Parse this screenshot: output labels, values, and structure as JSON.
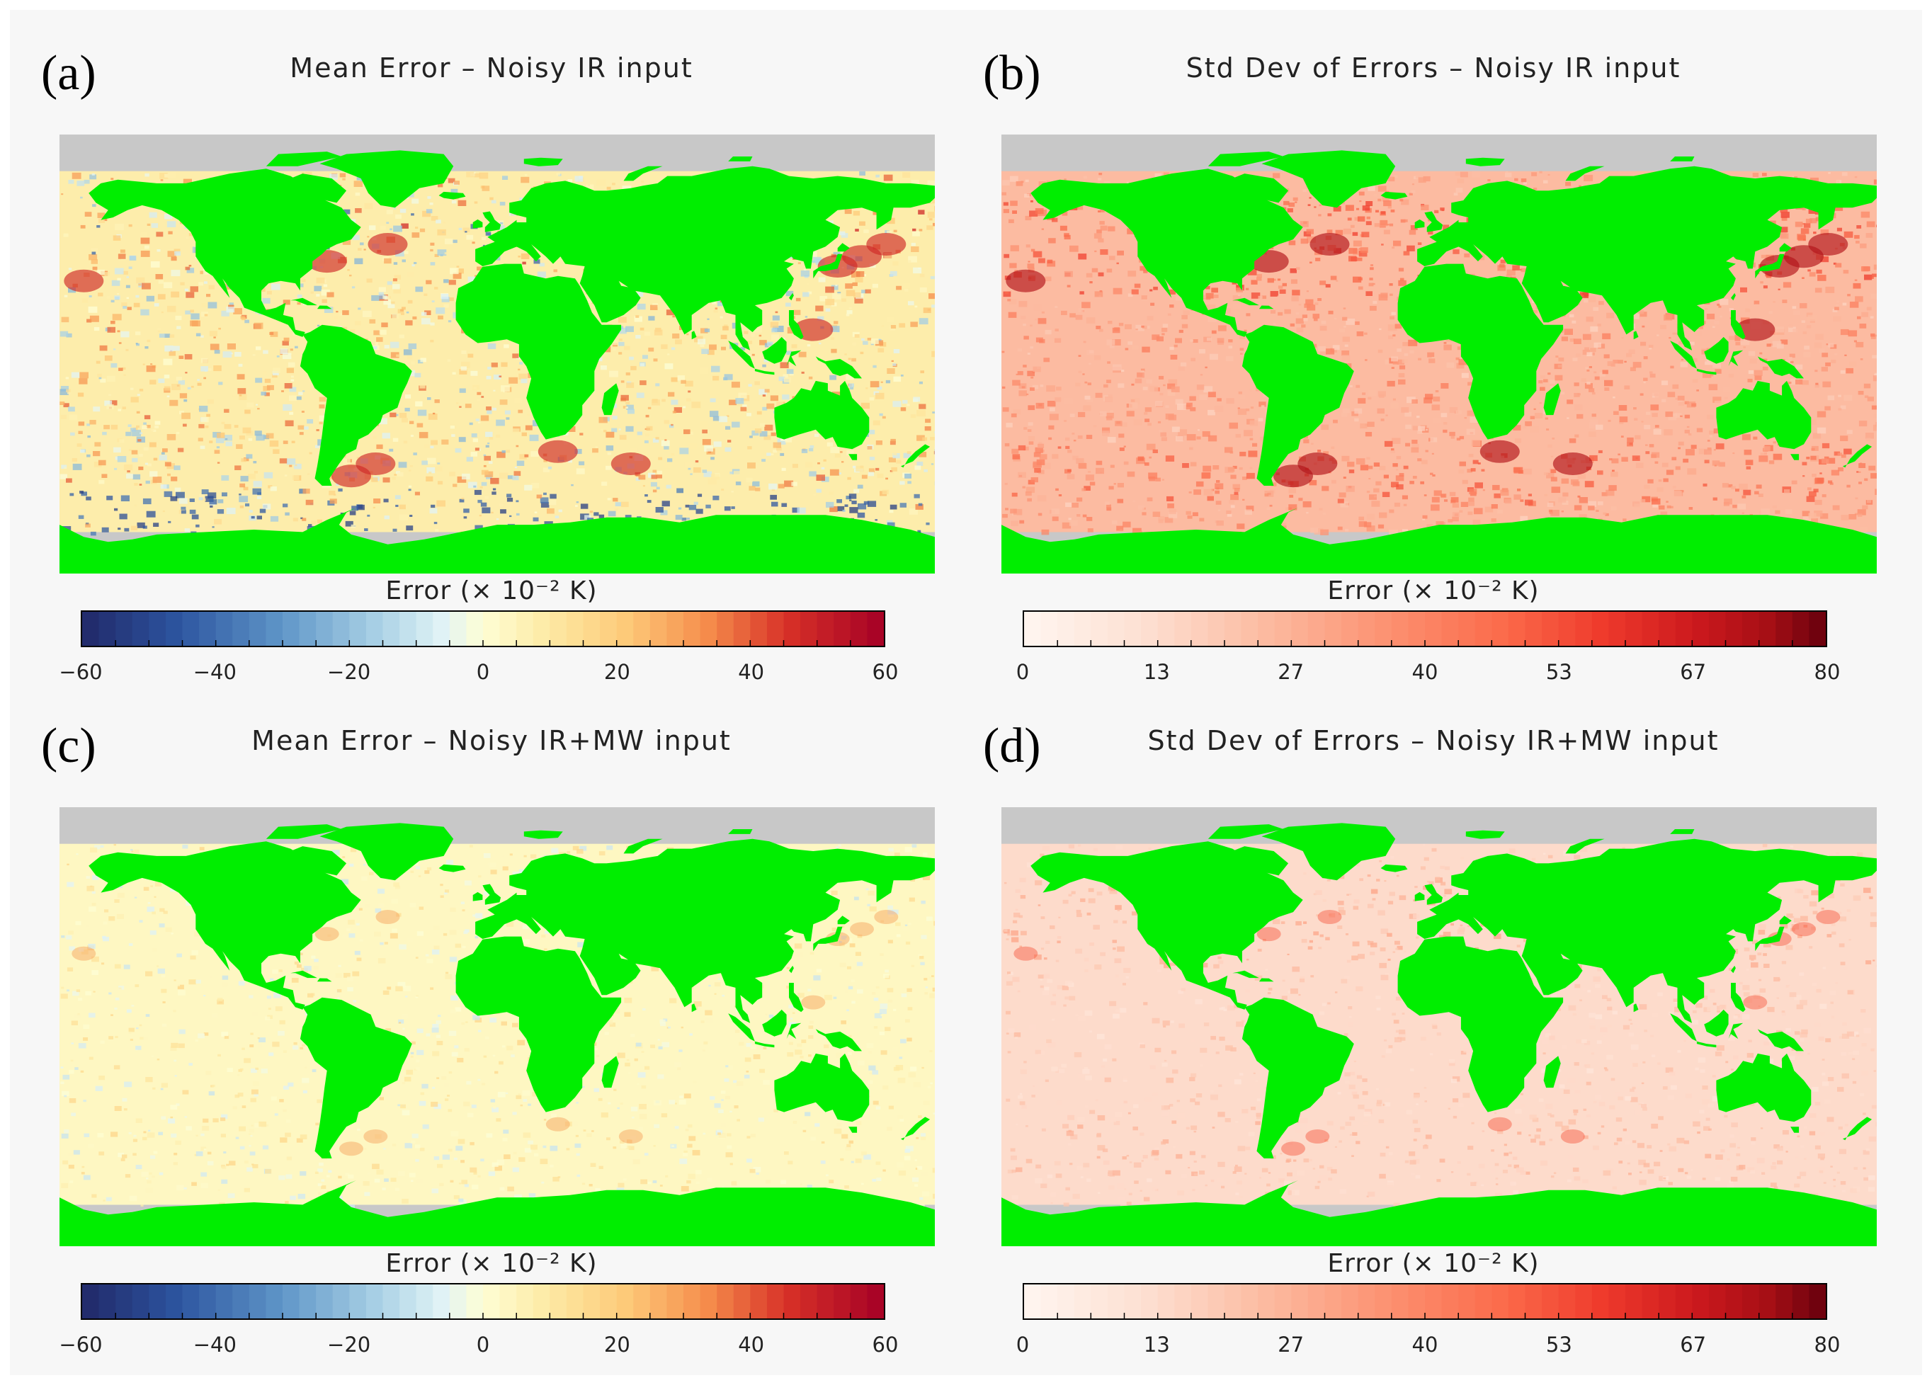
{
  "figure": {
    "land_color": "#00ee00",
    "missing_color": "#c8c8c8",
    "panels": [
      {
        "label": "(a)",
        "title": "Mean Error – Noisy IR input",
        "colorbar_label": "Error (× 10⁻² K)",
        "colormap": "diverging",
        "ticks": [
          "−60",
          "−40",
          "−20",
          "0",
          "20",
          "40",
          "60"
        ],
        "range": [
          -60,
          60
        ],
        "noise_level": "high"
      },
      {
        "label": "(b)",
        "title": "Std Dev of Errors – Noisy IR input",
        "colorbar_label": "Error (× 10⁻² K)",
        "colormap": "sequential-red",
        "ticks": [
          "0",
          "13",
          "27",
          "40",
          "53",
          "67",
          "80"
        ],
        "range": [
          0,
          80
        ],
        "noise_level": "high"
      },
      {
        "label": "(c)",
        "title": "Mean Error – Noisy IR+MW input",
        "colorbar_label": "Error (× 10⁻² K)",
        "colormap": "diverging",
        "ticks": [
          "−60",
          "−40",
          "−20",
          "0",
          "20",
          "40",
          "60"
        ],
        "range": [
          -60,
          60
        ],
        "noise_level": "low"
      },
      {
        "label": "(d)",
        "title": "Std Dev of Errors – Noisy IR+MW input",
        "colorbar_label": "Error (× 10⁻² K)",
        "colormap": "sequential-red",
        "ticks": [
          "0",
          "13",
          "27",
          "40",
          "53",
          "67",
          "80"
        ],
        "range": [
          0,
          80
        ],
        "noise_level": "low"
      }
    ]
  }
}
